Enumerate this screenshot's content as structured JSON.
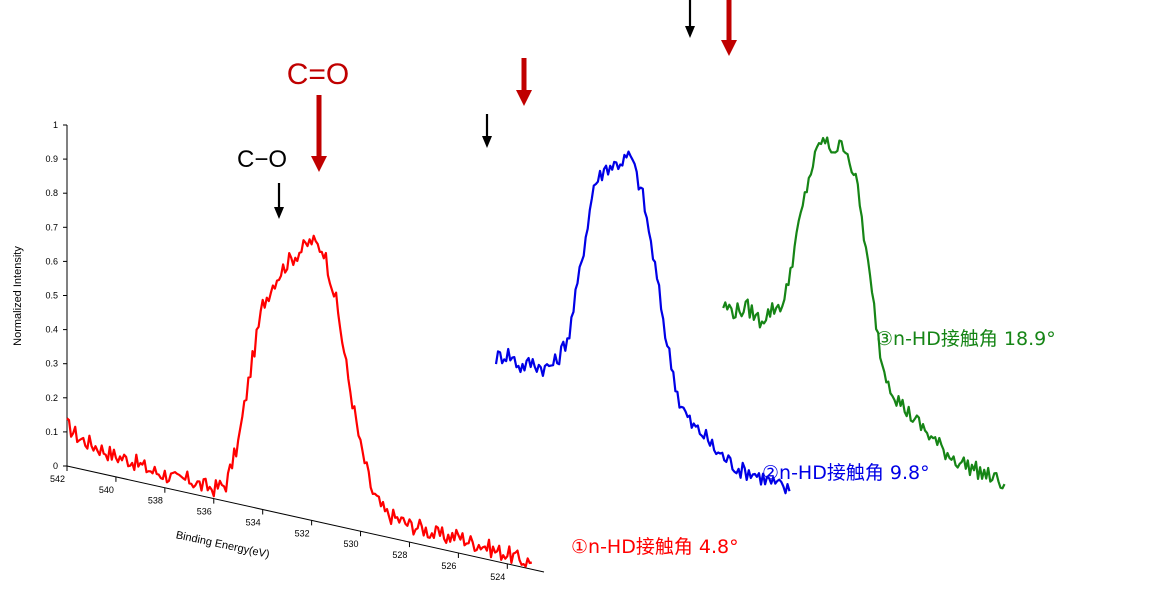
{
  "chart_data": {
    "type": "line",
    "subtype": "3d-waterfall",
    "xlabel": "Binding Energy(eV)",
    "ylabel": "Normalized Intensity",
    "xlim": [
      542,
      522.5
    ],
    "ylim": [
      0,
      1
    ],
    "x_ticks": [
      542,
      540,
      538,
      536,
      534,
      532,
      530,
      528,
      526,
      524
    ],
    "y_ticks": [
      0,
      0.1,
      0.2,
      0.3,
      0.4,
      0.5,
      0.6,
      0.7,
      0.8,
      0.9,
      1
    ],
    "y_tick_labels": [
      "0",
      "0.1",
      "0.2",
      "0.3",
      "0.4",
      "0.5",
      "0.6",
      "0.7",
      "0.8",
      "0.9",
      "1"
    ],
    "x_tick_labels": [
      "542",
      "540",
      "538",
      "536",
      "534",
      "532",
      "530",
      "528",
      "526",
      "524"
    ],
    "grid": false,
    "series": [
      {
        "name": "①n-HD接触角 4.8°",
        "color": "#ff0000",
        "depth": 0,
        "x": [
          542,
          541.5,
          541,
          540.5,
          540,
          539.5,
          539,
          538.5,
          538,
          537.5,
          537,
          536.5,
          536,
          535.5,
          535,
          534.5,
          534,
          533.5,
          533,
          532.5,
          532,
          531.5,
          531,
          530.5,
          530,
          529.5,
          529,
          528.5,
          528,
          527.5,
          527,
          526.5,
          526,
          525.5,
          525,
          524.5,
          524,
          523.5,
          523
        ],
        "y": [
          0.12,
          0.09,
          0.08,
          0.07,
          0.06,
          0.06,
          0.05,
          0.04,
          0.04,
          0.03,
          0.04,
          0.03,
          0.03,
          0.05,
          0.18,
          0.4,
          0.6,
          0.68,
          0.74,
          0.78,
          0.82,
          0.8,
          0.66,
          0.44,
          0.25,
          0.12,
          0.07,
          0.06,
          0.05,
          0.05,
          0.04,
          0.04,
          0.05,
          0.04,
          0.04,
          0.03,
          0.03,
          0.02,
          0.02
        ]
      },
      {
        "name": "②n-HD接触角 9.8°",
        "color": "#0000e6",
        "depth": 1,
        "x": [
          535.5,
          535,
          534.5,
          534,
          533.5,
          533,
          532.5,
          532,
          531.5,
          531,
          530.5,
          530,
          529.5,
          529,
          528.5,
          528,
          527.5,
          527,
          526.5,
          526,
          525.5,
          525,
          524.5,
          524,
          523.5
        ],
        "y": [
          0.21,
          0.23,
          0.2,
          0.22,
          0.21,
          0.24,
          0.33,
          0.55,
          0.78,
          0.84,
          0.86,
          0.89,
          0.78,
          0.58,
          0.36,
          0.2,
          0.14,
          0.12,
          0.08,
          0.06,
          0.04,
          0.04,
          0.03,
          0.02,
          0.01
        ]
      },
      {
        "name": "③n-HD接触角 18.9°",
        "color": "#168516",
        "depth": 2,
        "x": [
          535,
          534.5,
          534,
          533.5,
          533,
          532.5,
          532,
          531.5,
          531,
          530.5,
          530,
          529.5,
          529,
          528.5,
          528,
          527.5,
          527,
          526.5,
          526,
          525.5,
          525,
          524.5,
          524,
          523.5
        ],
        "y": [
          0.45,
          0.44,
          0.46,
          0.43,
          0.47,
          0.5,
          0.7,
          0.88,
          1.0,
          0.98,
          1.0,
          0.88,
          0.62,
          0.38,
          0.3,
          0.26,
          0.23,
          0.2,
          0.17,
          0.15,
          0.14,
          0.13,
          0.12,
          0.11
        ]
      }
    ],
    "annotations": [
      {
        "text": "C=O",
        "color": "#c00000"
      },
      {
        "text": "C−O",
        "color": "#000000"
      }
    ]
  }
}
